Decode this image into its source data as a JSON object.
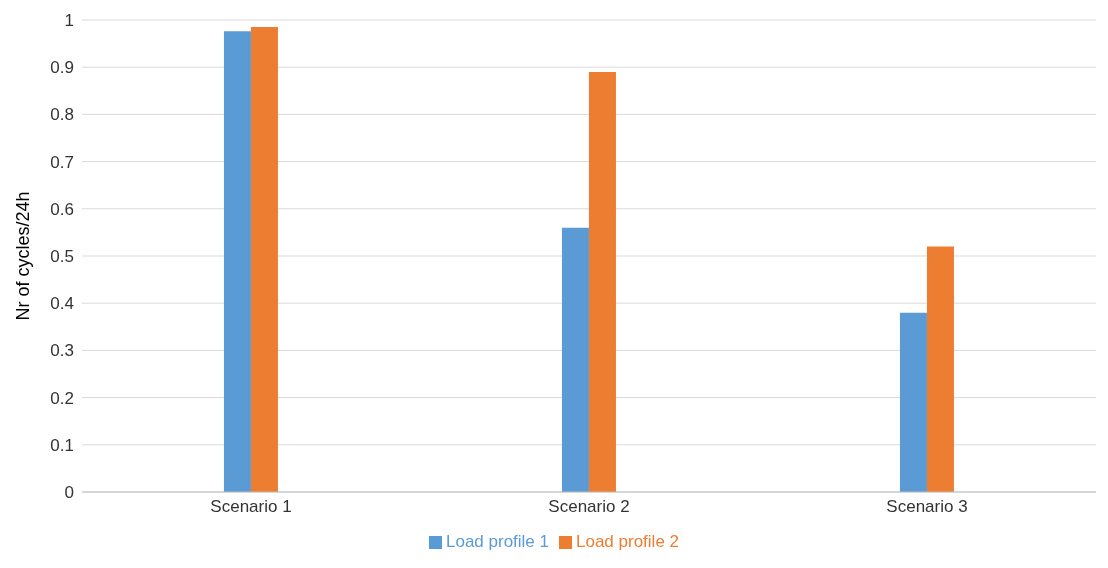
{
  "chart_data": {
    "type": "bar",
    "ylabel": "Nr of cycles/24h",
    "categories": [
      "Scenario 1",
      "Scenario 2",
      "Scenario 3"
    ],
    "series": [
      {
        "name": "Load profile 1",
        "color": "#5b9bd5",
        "values": [
          0.976,
          0.56,
          0.38
        ]
      },
      {
        "name": "Load profile 2",
        "color": "#ed7d31",
        "values": [
          0.985,
          0.89,
          0.52
        ]
      }
    ],
    "ylim": [
      0,
      1
    ],
    "yticks": [
      0,
      0.1,
      0.2,
      0.3,
      0.4,
      0.5,
      0.6,
      0.7,
      0.8,
      0.9,
      1
    ],
    "grid": "y",
    "legend": "bottom"
  }
}
